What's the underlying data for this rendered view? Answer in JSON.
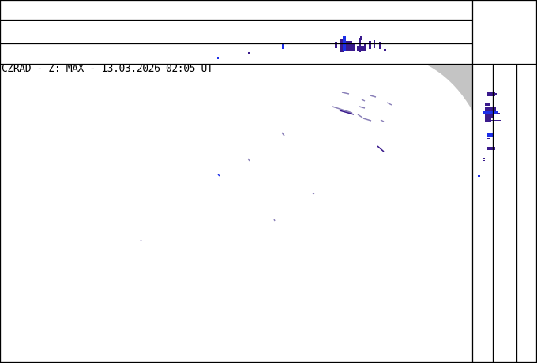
{
  "title": "CZRAD - Z: MAX - 13.03.2026 02:05 UT",
  "colors": {
    "background": "#ffffff",
    "frame": "#000000",
    "out_of_range": "#c4c4c4",
    "echo_weak": "#3a1a8c",
    "echo_mid": "#1c2ee8",
    "echo_light": "#8a80b8"
  },
  "panels": [
    "main-view",
    "top-side-view",
    "right-side-view",
    "corner"
  ]
}
